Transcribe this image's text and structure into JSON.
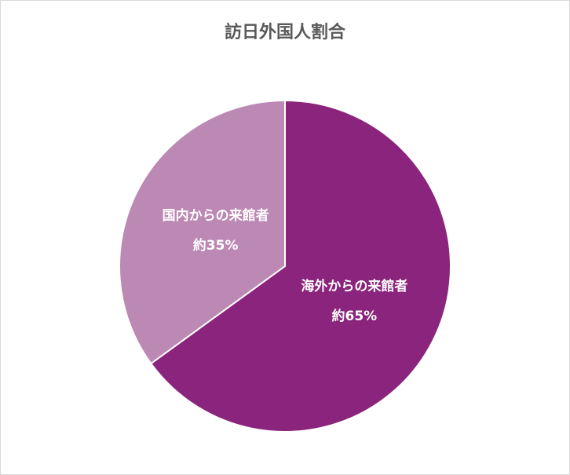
{
  "chart_data": {
    "type": "pie",
    "title": "訪日外国人割合",
    "categories": [
      "海外からの来館者",
      "国内からの来館者"
    ],
    "values": [
      65,
      35
    ],
    "value_labels": [
      "約65%",
      "約35%"
    ],
    "colors": [
      "#8b247c",
      "#bc88b4"
    ]
  }
}
